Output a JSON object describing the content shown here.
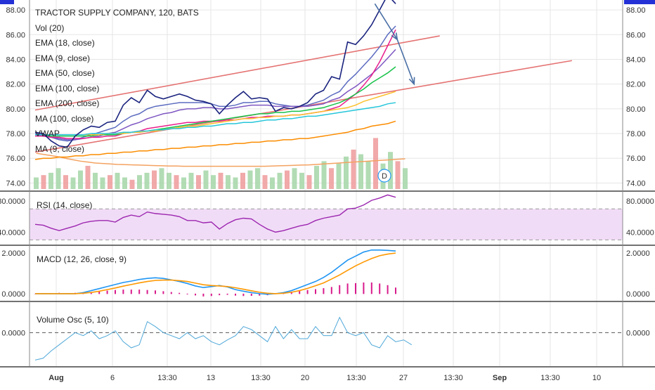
{
  "chart_data": [
    {
      "type": "line",
      "title": "TRACTOR SUPPLY COMPANY, 120, BATS",
      "pane": "price",
      "ylim": [
        73.4,
        88.8
      ],
      "yticks": [
        "74.00",
        "76.00",
        "78.00",
        "80.00",
        "82.00",
        "84.00",
        "86.00",
        "88.00"
      ],
      "ytick_values": [
        74,
        76,
        78,
        80,
        82,
        84,
        86,
        88
      ],
      "legend": [
        "Vol (20)",
        "EMA (18, close)",
        "EMA (9, close)",
        "EMA (50, close)",
        "EMA (100, close)",
        "EMA (200, close)",
        "MA (100, close)",
        "VWAP",
        "MA (9, close)"
      ],
      "x_labels": [
        "Aug",
        "6",
        "13:30",
        "13",
        "13:30",
        "20",
        "13:30",
        "27",
        "13:30",
        "Sep",
        "13:30",
        "10"
      ],
      "price_series": [
        78.1,
        78.0,
        77.4,
        77.0,
        76.9,
        77.8,
        78.3,
        78.6,
        78.5,
        78.9,
        79.0,
        80.3,
        80.9,
        80.5,
        81.5,
        81.0,
        80.8,
        81.0,
        81.2,
        81.0,
        80.7,
        80.6,
        80.4,
        79.6,
        80.3,
        80.9,
        81.4,
        80.8,
        80.9,
        80.8,
        79.8,
        80.1,
        80.0,
        80.2,
        80.5,
        81.2,
        81.5,
        82.6,
        82.4,
        85.4,
        85.2,
        85.9,
        86.8,
        88.0,
        89.2,
        88.5
      ],
      "series": [
        {
          "name": "EMA (9, close)",
          "color": "#5c6bc0",
          "values": [
            78.0,
            77.9,
            77.7,
            77.5,
            77.4,
            77.5,
            77.7,
            77.9,
            78.1,
            78.3,
            78.5,
            79.0,
            79.4,
            79.6,
            80.0,
            80.2,
            80.3,
            80.4,
            80.5,
            80.5,
            80.5,
            80.5,
            80.4,
            80.2,
            80.2,
            80.3,
            80.5,
            80.5,
            80.6,
            80.6,
            80.4,
            80.3,
            80.2,
            80.2,
            80.3,
            80.5,
            80.7,
            81.1,
            81.4,
            82.2,
            82.8,
            83.5,
            84.2,
            85.0,
            86.0,
            86.7
          ]
        },
        {
          "name": "EMA (18, close)",
          "color": "#7e57c2",
          "values": [
            77.9,
            77.8,
            77.7,
            77.6,
            77.5,
            77.5,
            77.6,
            77.7,
            77.8,
            78.0,
            78.1,
            78.4,
            78.7,
            78.9,
            79.2,
            79.4,
            79.6,
            79.7,
            79.9,
            80.0,
            80.0,
            80.1,
            80.1,
            80.0,
            80.0,
            80.1,
            80.2,
            80.3,
            80.3,
            80.3,
            80.2,
            80.2,
            80.2,
            80.2,
            80.2,
            80.3,
            80.4,
            80.7,
            80.9,
            81.4,
            81.8,
            82.3,
            82.8,
            83.4,
            84.1,
            84.8
          ]
        },
        {
          "name": "EMA (50, close)",
          "color": "#e91e8c",
          "values": [
            77.8,
            77.8,
            77.7,
            77.7,
            77.6,
            77.6,
            77.6,
            77.7,
            77.7,
            77.8,
            77.8,
            78.0,
            78.1,
            78.2,
            78.4,
            78.5,
            78.6,
            78.7,
            78.8,
            78.9,
            78.9,
            79.0,
            79.0,
            79.0,
            79.1,
            79.1,
            79.2,
            79.3,
            79.3,
            79.4,
            79.4,
            79.4,
            79.5,
            79.5,
            79.6,
            79.7,
            79.8,
            80.0,
            80.2,
            80.7,
            81.2,
            81.9,
            82.7,
            83.8,
            85.1,
            86.4
          ]
        },
        {
          "name": "EMA (100, close)",
          "color": "#19c24a",
          "values": [
            77.9,
            77.9,
            77.8,
            77.8,
            77.8,
            77.8,
            77.8,
            77.8,
            77.9,
            77.9,
            77.9,
            78.0,
            78.1,
            78.1,
            78.2,
            78.3,
            78.4,
            78.5,
            78.6,
            78.7,
            78.8,
            78.9,
            79.0,
            79.1,
            79.2,
            79.3,
            79.4,
            79.5,
            79.6,
            79.6,
            79.7,
            79.7,
            79.8,
            79.8,
            79.9,
            80.0,
            80.1,
            80.3,
            80.5,
            80.8,
            81.2,
            81.6,
            82.1,
            82.5,
            82.9,
            83.4
          ]
        },
        {
          "name": "EMA (200, close)",
          "color": "#fbc02d",
          "values": [
            77.9,
            77.9,
            77.9,
            77.9,
            77.9,
            77.9,
            77.9,
            77.9,
            77.9,
            78.0,
            78.0,
            78.0,
            78.1,
            78.1,
            78.2,
            78.2,
            78.3,
            78.4,
            78.5,
            78.6,
            78.6,
            78.7,
            78.8,
            78.9,
            79.0,
            79.1,
            79.2,
            79.2,
            79.3,
            79.3,
            79.4,
            79.4,
            79.5,
            79.5,
            79.6,
            79.7,
            79.8,
            79.9,
            80.0,
            80.1,
            80.3,
            80.6,
            80.8,
            81.0,
            81.2,
            81.4
          ]
        },
        {
          "name": "MA (100, close)",
          "color": "#26c6da",
          "values": [
            77.9,
            77.9,
            77.9,
            77.9,
            77.9,
            77.9,
            77.9,
            78.0,
            78.0,
            78.0,
            78.0,
            78.1,
            78.1,
            78.2,
            78.2,
            78.3,
            78.3,
            78.4,
            78.4,
            78.5,
            78.5,
            78.6,
            78.6,
            78.7,
            78.8,
            78.8,
            78.9,
            78.9,
            79.0,
            79.1,
            79.1,
            79.2,
            79.2,
            79.3,
            79.4,
            79.4,
            79.5,
            79.6,
            79.7,
            79.8,
            79.9,
            80.0,
            80.1,
            80.2,
            80.4,
            80.5
          ]
        },
        {
          "name": "VWAP",
          "color": "#fb8c00",
          "values": [
            75.9,
            76.0,
            76.0,
            76.1,
            76.1,
            76.2,
            76.2,
            76.3,
            76.3,
            76.4,
            76.4,
            76.5,
            76.5,
            76.6,
            76.6,
            76.7,
            76.7,
            76.8,
            76.8,
            76.9,
            76.9,
            77.0,
            77.0,
            77.1,
            77.1,
            77.2,
            77.2,
            77.3,
            77.3,
            77.4,
            77.4,
            77.5,
            77.5,
            77.6,
            77.6,
            77.7,
            77.8,
            77.9,
            78.0,
            78.1,
            78.3,
            78.4,
            78.6,
            78.7,
            78.8,
            79.0
          ]
        }
      ],
      "trendlines": [
        {
          "color": "#e57373",
          "x": [
            0,
            50.5
          ],
          "y": [
            79.9,
            85.9
          ]
        },
        {
          "color": "#e57373",
          "x": [
            0,
            67
          ],
          "y": [
            76.5,
            83.9
          ]
        }
      ],
      "arrow_path": {
        "x": [
          42.4,
          45.2,
          47.3
        ],
        "y": [
          88.5,
          85.6,
          82.0
        ]
      },
      "volume_values": [
        5,
        6,
        7,
        9,
        6,
        5,
        8,
        10,
        7,
        5,
        6,
        7,
        5,
        4,
        6,
        7,
        8,
        9,
        7,
        6,
        5,
        7,
        6,
        8,
        6,
        7,
        6,
        5,
        7,
        8,
        9,
        6,
        5,
        7,
        8,
        9,
        7,
        6,
        10,
        12,
        9,
        11,
        14,
        17,
        15,
        12,
        22,
        11,
        16,
        12,
        9
      ],
      "volume_ma_values": [
        13,
        12.5,
        12,
        11.5,
        10.8,
        10.2,
        9.6,
        9.2,
        8.8,
        8.6,
        8.4,
        8.2,
        8.1,
        8.0,
        7.9,
        7.8,
        7.7,
        7.6,
        7.5,
        7.5,
        7.4,
        7.4,
        7.4,
        7.4,
        7.4,
        7.4,
        7.4,
        7.4,
        7.4,
        7.4,
        7.4,
        7.4,
        7.5,
        7.6,
        7.7,
        7.8,
        7.9,
        8.0,
        8.2,
        8.4,
        8.6,
        8.8,
        9.0,
        9.2,
        9.4,
        9.6,
        9.8,
        10.0,
        10.2,
        10.4,
        10.6
      ],
      "dividend_marker": "D"
    },
    {
      "type": "line",
      "pane": "rsi",
      "title": "RSI (14, close)",
      "ylim": [
        24,
        92
      ],
      "yticks": [
        "40.0000",
        "80.0000"
      ],
      "ytick_values": [
        40,
        80
      ],
      "band": [
        30,
        70
      ],
      "series": [
        {
          "name": "RSI (14, close)",
          "color": "#9c27b0",
          "values": [
            50,
            49,
            45,
            42,
            45,
            48,
            52,
            54,
            55,
            55,
            53,
            59,
            62,
            60,
            66,
            64,
            63,
            62,
            60,
            55,
            55,
            52,
            53,
            44,
            51,
            56,
            58,
            57,
            50,
            44,
            40,
            42,
            45,
            48,
            50,
            55,
            58,
            60,
            62,
            70,
            71,
            75,
            81,
            84,
            88,
            85
          ]
        }
      ]
    },
    {
      "type": "line",
      "pane": "macd",
      "title": "MACD (12, 26, close, 9)",
      "ylim": [
        -0.35,
        2.35
      ],
      "yticks": [
        "0.0000",
        "2.0000"
      ],
      "ytick_values": [
        0,
        2
      ],
      "series": [
        {
          "name": "MACD",
          "color": "#2196f3",
          "values": [
            0.0,
            0.0,
            0.0,
            0.0,
            0.0,
            0.0,
            0.05,
            0.15,
            0.25,
            0.35,
            0.45,
            0.55,
            0.62,
            0.7,
            0.75,
            0.78,
            0.75,
            0.68,
            0.6,
            0.5,
            0.38,
            0.3,
            0.35,
            0.4,
            0.33,
            0.2,
            0.12,
            0.05,
            0.0,
            -0.03,
            0.0,
            0.05,
            0.15,
            0.3,
            0.45,
            0.6,
            0.8,
            1.05,
            1.35,
            1.65,
            1.85,
            2.05,
            2.15,
            2.15,
            2.13,
            2.1
          ]
        },
        {
          "name": "Signal",
          "color": "#ff9800",
          "values": [
            0.0,
            0.0,
            0.0,
            0.0,
            0.0,
            0.0,
            0.02,
            0.06,
            0.12,
            0.2,
            0.28,
            0.37,
            0.45,
            0.53,
            0.6,
            0.65,
            0.67,
            0.67,
            0.64,
            0.6,
            0.52,
            0.44,
            0.4,
            0.38,
            0.35,
            0.29,
            0.22,
            0.14,
            0.07,
            0.02,
            0.0,
            0.02,
            0.07,
            0.15,
            0.26,
            0.39,
            0.53,
            0.72,
            0.92,
            1.15,
            1.37,
            1.56,
            1.73,
            1.87,
            1.95,
            2.0
          ]
        }
      ],
      "histogram": [
        0,
        0.03,
        0.03,
        0.04,
        0.03,
        0.04,
        0.05,
        0.08,
        0.12,
        0.15,
        0.18,
        0.2,
        0.2,
        0.2,
        0.18,
        0.16,
        0.12,
        0.08,
        0.04,
        -0.02,
        -0.07,
        -0.12,
        -0.1,
        -0.06,
        -0.04,
        -0.08,
        -0.1,
        -0.09,
        -0.08,
        -0.06,
        0.03,
        0.06,
        0.09,
        0.14,
        0.18,
        0.22,
        0.27,
        0.33,
        0.42,
        0.5,
        0.52,
        0.55,
        0.55,
        0.5,
        0.42,
        0.3
      ]
    },
    {
      "type": "line",
      "pane": "volosc",
      "title": "Volume Osc (5, 10)",
      "ylim": [
        -55,
        50
      ],
      "yticks": [
        "0.0000"
      ],
      "ytick_values": [
        0
      ],
      "series": [
        {
          "name": "Volume Osc (5, 10)",
          "color": "#4fa8d8",
          "values": [
            -45,
            -42,
            -30,
            -20,
            -10,
            0,
            -5,
            3,
            -10,
            -5,
            3,
            -15,
            -25,
            -20,
            18,
            10,
            0,
            -5,
            -10,
            0,
            -10,
            -5,
            -15,
            -20,
            -12,
            -5,
            10,
            5,
            -5,
            -15,
            10,
            -10,
            5,
            -10,
            -10,
            10,
            -5,
            -5,
            25,
            0,
            -5,
            0,
            -20,
            -25,
            -5,
            -15,
            -12,
            -20
          ]
        }
      ]
    }
  ],
  "colors": {
    "candle_line": "#1a237e",
    "grid": "#e6e6e6",
    "separator": "#444444",
    "rsi_band_fill": "#f1dcf7",
    "volume_up": "#a5d6a7",
    "volume_down": "#ef9a9a",
    "top_marker": "#2431d6"
  }
}
